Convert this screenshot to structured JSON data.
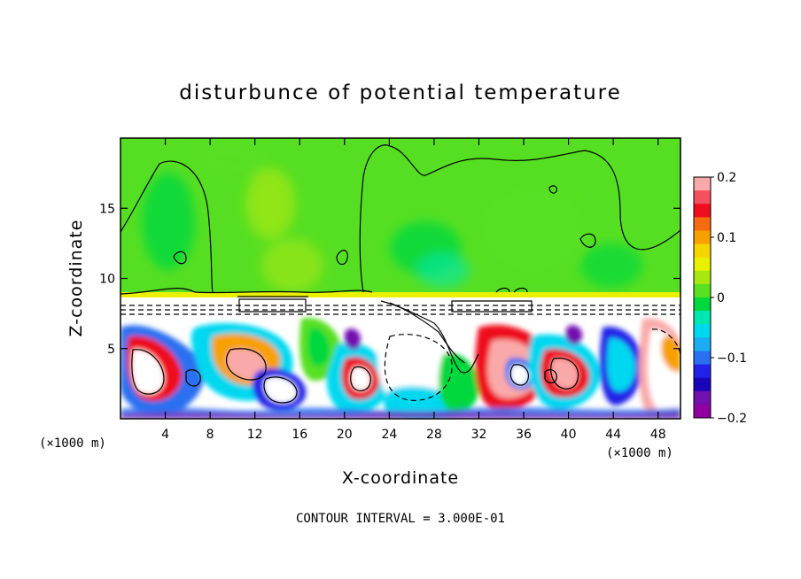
{
  "chart_data": {
    "type": "heatmap",
    "title": "disturbunce of potential temperature",
    "xlabel": "X-coordinate",
    "ylabel": "Z-coordinate",
    "x_unit": "(×1000 m)",
    "z_unit": "(×1000 m)",
    "xlim": [
      0,
      50
    ],
    "ylim": [
      0,
      20
    ],
    "x_ticks": [
      4,
      8,
      12,
      16,
      20,
      24,
      28,
      32,
      36,
      40,
      44,
      48
    ],
    "y_ticks": [
      5,
      10,
      15
    ],
    "colorbar": {
      "min": -0.2,
      "max": 0.2,
      "ticks": [
        0.2,
        0.1,
        0,
        -0.1,
        -0.2
      ],
      "tick_labels": [
        "0.2",
        "0.1",
        "0",
        "−0.1",
        "−0.2"
      ],
      "colors": [
        "#f9a9a9",
        "#f55060",
        "#ee0e1e",
        "#f66a10",
        "#f7a000",
        "#f5d400",
        "#e9f000",
        "#a8e810",
        "#58e021",
        "#00d83d",
        "#00e8b0",
        "#00d8f0",
        "#1cacf0",
        "#2a6ff0",
        "#2222e8",
        "#1a05b8",
        "#7210b0",
        "#9000a0"
      ]
    },
    "contour_interval_text": "CONTOUR INTERVAL = 3.000E-01",
    "upper_layer": {
      "z_range": [
        9,
        20
      ],
      "value_level": 0.0
    },
    "lower_layer": {
      "z_range": [
        0,
        8
      ],
      "value_range": [
        -0.2,
        0.2
      ]
    }
  }
}
